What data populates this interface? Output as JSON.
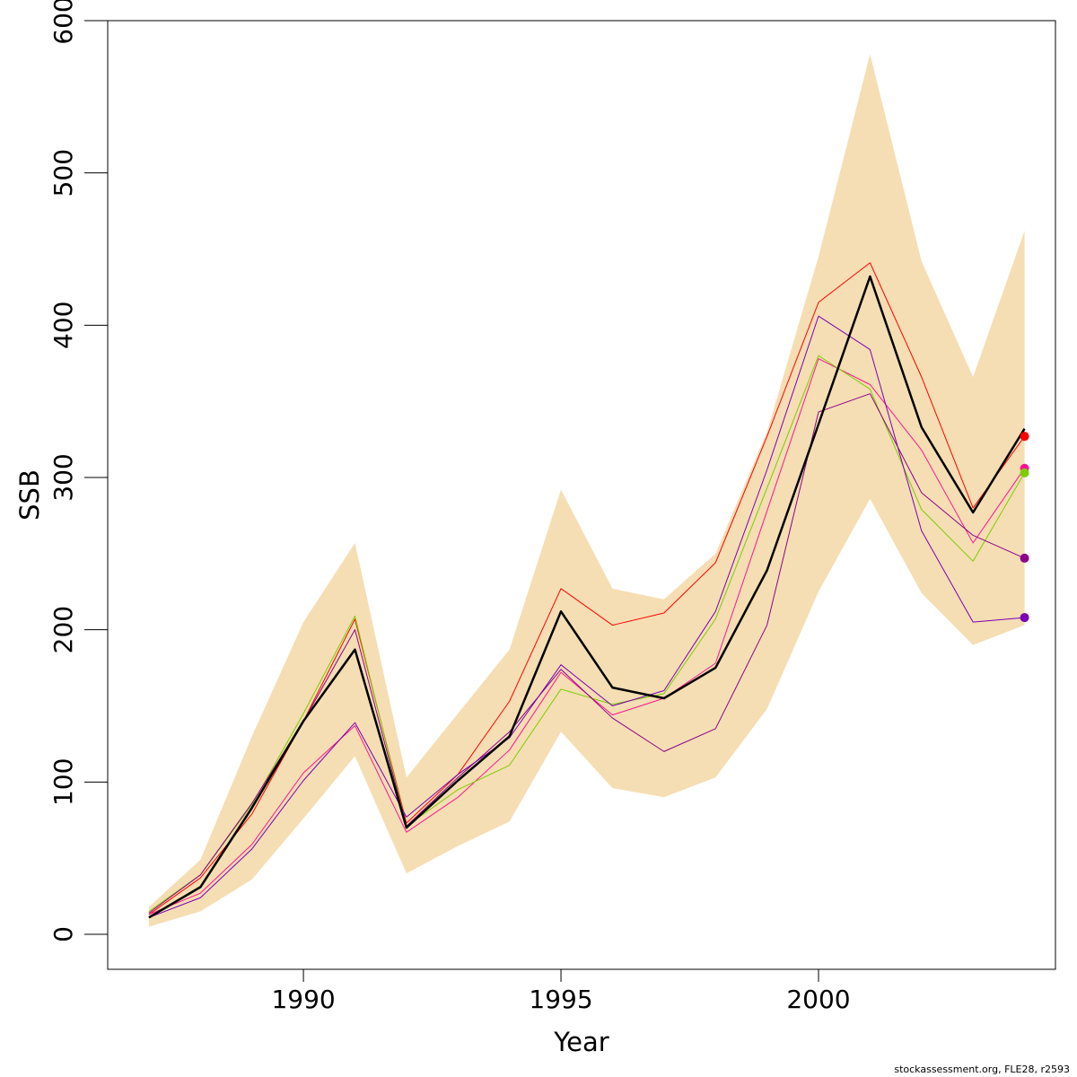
{
  "chart_data": {
    "type": "line",
    "title": "",
    "xlabel": "Year",
    "ylabel": "SSB",
    "xlim": [
      1986.2,
      2004.6
    ],
    "ylim": [
      -23,
      600
    ],
    "x_ticks": [
      1990,
      1995,
      2000
    ],
    "y_ticks": [
      0,
      100,
      200,
      300,
      400,
      500,
      600
    ],
    "x_tick_labels": [
      "1990",
      "1995",
      "2000"
    ],
    "y_tick_labels": [
      "0",
      "100",
      "200",
      "300",
      "400",
      "500",
      "600"
    ],
    "grid": false,
    "x": [
      1987,
      1988,
      1989,
      1990,
      1991,
      1992,
      1993,
      1994,
      1995,
      1996,
      1997,
      1998,
      1999,
      2000,
      2001,
      2002,
      2003,
      2004
    ],
    "band": {
      "color": "#F5DEB3",
      "upper": [
        18,
        49,
        130,
        205,
        257,
        103,
        145,
        187,
        292,
        227,
        220,
        250,
        330,
        445,
        578,
        442,
        366,
        462
      ],
      "lower": [
        5,
        15,
        36,
        76,
        117,
        40,
        58,
        74,
        133,
        96,
        90,
        103,
        148,
        225,
        286,
        224,
        190,
        203
      ]
    },
    "series": [
      {
        "color": "#FF0000",
        "width": 1,
        "values": [
          13,
          37,
          79,
          140,
          207,
          73,
          105,
          153,
          227,
          203,
          211,
          244,
          327,
          415,
          441,
          366,
          280,
          327
        ],
        "end_point": true
      },
      {
        "color": "#FF1493",
        "width": 1,
        "values": [
          13,
          27,
          59,
          106,
          137,
          67,
          90,
          121,
          172,
          144,
          155,
          178,
          278,
          378,
          361,
          318,
          257,
          306
        ],
        "end_point": true
      },
      {
        "color": "#7CCD00",
        "width": 1,
        "values": [
          15,
          39,
          85,
          145,
          209,
          71,
          95,
          111,
          161,
          151,
          158,
          207,
          293,
          380,
          358,
          279,
          245,
          303
        ],
        "end_point": true
      },
      {
        "color": "#8B008B",
        "width": 1,
        "values": [
          14,
          39,
          86,
          140,
          200,
          71,
          103,
          133,
          174,
          142,
          120,
          135,
          203,
          343,
          355,
          290,
          262,
          247
        ],
        "end_point": true
      },
      {
        "color": "#7B00B4",
        "width": 1,
        "values": [
          11,
          24,
          56,
          101,
          139,
          77,
          105,
          129,
          177,
          150,
          160,
          212,
          305,
          406,
          384,
          265,
          205,
          208
        ],
        "end_point": true
      },
      {
        "color": "#000000",
        "width": 2.5,
        "values": [
          11,
          31,
          83,
          140,
          187,
          70,
          101,
          130,
          212,
          162,
          155,
          175,
          239,
          335,
          432,
          333,
          277,
          332
        ],
        "end_point": false
      }
    ]
  },
  "credit": "stockassessment.org, FLE28, r2593"
}
